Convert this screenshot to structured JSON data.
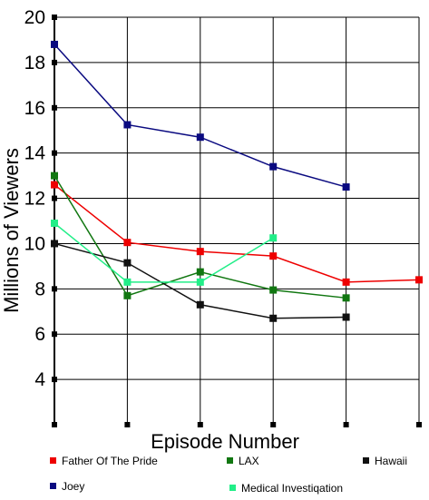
{
  "chart_data": {
    "type": "line",
    "title": "",
    "xlabel": "Episode Number",
    "ylabel": "Millions of Viewers",
    "x": [
      1,
      2,
      3,
      4,
      5,
      6
    ],
    "xlim": [
      1,
      6
    ],
    "ylim": [
      2,
      20
    ],
    "yticks": [
      4,
      6,
      8,
      10,
      12,
      14,
      16,
      18,
      20
    ],
    "grid": true,
    "legend_position": "bottom",
    "series": [
      {
        "name": "Father Of The Pride",
        "color": "#ee0000",
        "x": [
          1,
          2,
          3,
          4,
          5,
          6
        ],
        "values": [
          12.6,
          10.05,
          9.65,
          9.45,
          8.3,
          8.4
        ]
      },
      {
        "name": "LAX",
        "color": "#117711",
        "x": [
          1,
          2,
          3,
          4,
          5
        ],
        "values": [
          13.0,
          7.7,
          8.75,
          7.95,
          7.6
        ]
      },
      {
        "name": "Hawaii",
        "color": "#111111",
        "x": [
          1,
          2,
          3,
          4,
          5
        ],
        "values": [
          10.0,
          9.15,
          7.3,
          6.7,
          6.75
        ]
      },
      {
        "name": "Joey",
        "color": "#0a0a80",
        "x": [
          1,
          2,
          3,
          4,
          5
        ],
        "values": [
          18.8,
          15.25,
          14.7,
          13.4,
          12.5
        ]
      },
      {
        "name": "Medical Investiqation",
        "color": "#22ee88",
        "x": [
          1,
          2,
          3,
          4
        ],
        "values": [
          10.9,
          8.3,
          8.3,
          10.25
        ]
      }
    ]
  }
}
